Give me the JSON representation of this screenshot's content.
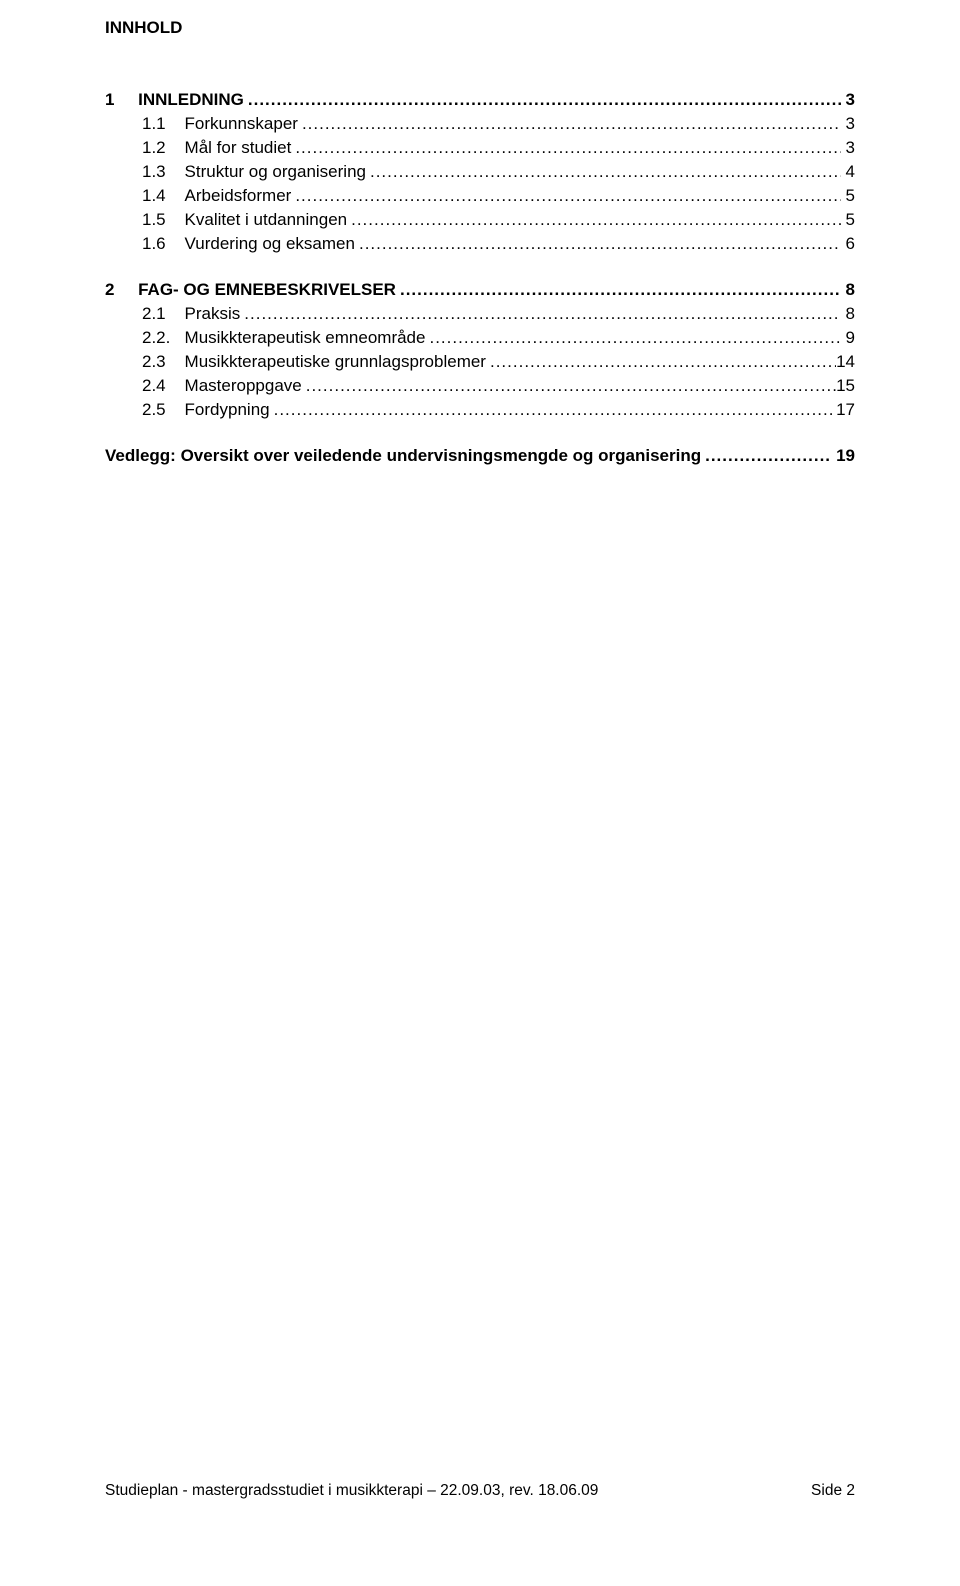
{
  "colors": {
    "text": "#000000",
    "background": "#ffffff"
  },
  "typography": {
    "font_family": "Verdana",
    "title_fontsize_pt": 13,
    "body_fontsize_pt": 13,
    "footer_fontsize_pt": 12
  },
  "title": "INNHOLD",
  "dots": "........................................................................................................................................................................................................",
  "toc": {
    "s1": {
      "num": "1",
      "label": "INNLEDNING",
      "page": "3",
      "items": [
        {
          "num": "1.1",
          "label": "Forkunnskaper",
          "page": "3"
        },
        {
          "num": "1.2",
          "label": "Mål for studiet",
          "page": "3"
        },
        {
          "num": "1.3",
          "label": "Struktur og organisering",
          "page": "4"
        },
        {
          "num": "1.4",
          "label": "Arbeidsformer",
          "page": "5"
        },
        {
          "num": "1.5",
          "label": "Kvalitet i utdanningen",
          "page": "5"
        },
        {
          "num": "1.6",
          "label": "Vurdering og eksamen",
          "page": "6"
        }
      ]
    },
    "s2": {
      "num": "2",
      "label": "FAG- OG EMNEBESKRIVELSER",
      "page": "8",
      "items": [
        {
          "num": "2.1",
          "label": "Praksis",
          "page": "8"
        },
        {
          "num": "2.2.",
          "label": "Musikkterapeutisk emneområde",
          "page": "9"
        },
        {
          "num": "2.3",
          "label": "Musikkterapeutiske grunnlagsproblemer",
          "page": "14"
        },
        {
          "num": "2.4",
          "label": "Masteroppgave",
          "page": "15"
        },
        {
          "num": "2.5",
          "label": "Fordypning",
          "page": "17"
        }
      ]
    },
    "appendix": {
      "label": "Vedlegg: Oversikt over veiledende undervisningsmengde og organisering",
      "page": "19"
    }
  },
  "footer": {
    "left": "Studieplan - mastergradsstudiet i musikkterapi – 22.09.03, rev. 18.06.09",
    "right": "Side 2"
  }
}
